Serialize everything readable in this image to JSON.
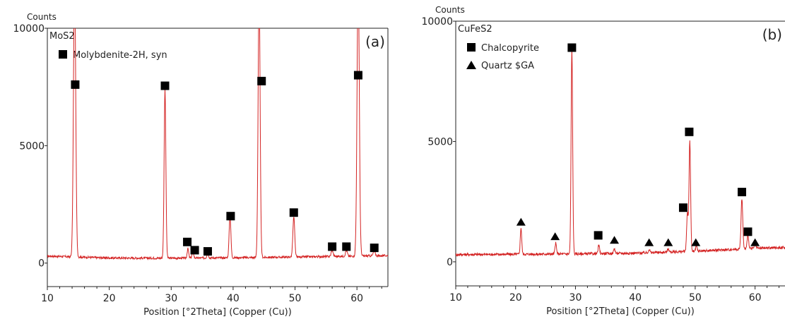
{
  "chart_data": [
    {
      "type": "line",
      "panel_label": "(a)",
      "title": "MoS2",
      "ylabel": "Counts",
      "xlabel": "Position [°2Theta] (Copper (Cu))",
      "xlim": [
        10,
        65
      ],
      "ylim": [
        -1000,
        10000
      ],
      "x_ticks": [
        10,
        20,
        30,
        40,
        50,
        60
      ],
      "y_ticks": [
        0,
        5000,
        10000
      ],
      "line_color": "#d42424",
      "legend": [
        {
          "marker": "square",
          "label": "Molybdenite-2H, syn"
        }
      ],
      "series": [
        {
          "baseline": [
            [
              10,
              300
            ],
            [
              20,
              220
            ],
            [
              30,
              210
            ],
            [
              40,
              230
            ],
            [
              50,
              260
            ],
            [
              60,
              300
            ],
            [
              65,
              320
            ]
          ],
          "noise": 45,
          "peaks": [
            [
              14.4,
              12000,
              0.18
            ],
            [
              29.0,
              7200,
              0.14
            ],
            [
              32.7,
              400,
              0.12
            ],
            [
              33.5,
              320,
              0.12
            ],
            [
              35.9,
              250,
              0.12
            ],
            [
              39.5,
              1800,
              0.14
            ],
            [
              44.2,
              11500,
              0.16
            ],
            [
              49.8,
              1700,
              0.15
            ],
            [
              56.0,
              280,
              0.15
            ],
            [
              58.3,
              250,
              0.15
            ],
            [
              60.2,
              12000,
              0.18
            ],
            [
              62.8,
              230,
              0.15
            ]
          ]
        }
      ],
      "markers": [
        {
          "shape": "square",
          "x": 14.5,
          "y": 7600
        },
        {
          "shape": "square",
          "x": 29.0,
          "y": 7550
        },
        {
          "shape": "square",
          "x": 32.6,
          "y": 900
        },
        {
          "shape": "square",
          "x": 33.8,
          "y": 550
        },
        {
          "shape": "square",
          "x": 35.9,
          "y": 500
        },
        {
          "shape": "square",
          "x": 39.6,
          "y": 2000
        },
        {
          "shape": "square",
          "x": 44.6,
          "y": 7750
        },
        {
          "shape": "square",
          "x": 49.8,
          "y": 2150
        },
        {
          "shape": "square",
          "x": 56.0,
          "y": 700
        },
        {
          "shape": "square",
          "x": 58.3,
          "y": 700
        },
        {
          "shape": "square",
          "x": 60.2,
          "y": 8000
        },
        {
          "shape": "square",
          "x": 62.8,
          "y": 650
        }
      ]
    },
    {
      "type": "line",
      "panel_label": "(b)",
      "title": "CuFeS2",
      "ylabel": "Counts",
      "xlabel": "Position [°2Theta] (Copper (Cu))",
      "xlim": [
        10,
        65
      ],
      "ylim": [
        -1000,
        10000
      ],
      "x_ticks": [
        10,
        20,
        30,
        40,
        50,
        60
      ],
      "y_ticks": [
        0,
        5000,
        10000
      ],
      "line_color": "#d42424",
      "legend": [
        {
          "marker": "square",
          "label": "Chalcopyrite"
        },
        {
          "marker": "triangle",
          "label": "Quartz $GA"
        }
      ],
      "series": [
        {
          "baseline": [
            [
              10,
              300
            ],
            [
              30,
              330
            ],
            [
              40,
              360
            ],
            [
              50,
              440
            ],
            [
              60,
              560
            ],
            [
              65,
              600
            ]
          ],
          "noise": 55,
          "peaks": [
            [
              20.9,
              1100,
              0.12
            ],
            [
              26.7,
              450,
              0.12
            ],
            [
              29.4,
              8500,
              0.13
            ],
            [
              33.9,
              350,
              0.12
            ],
            [
              36.5,
              200,
              0.12
            ],
            [
              42.3,
              150,
              0.12
            ],
            [
              45.5,
              150,
              0.12
            ],
            [
              48.7,
              1600,
              0.13
            ],
            [
              49.1,
              4600,
              0.13
            ],
            [
              50.2,
              200,
              0.12
            ],
            [
              57.8,
              2100,
              0.14
            ],
            [
              58.8,
              600,
              0.12
            ],
            [
              60.0,
              180,
              0.12
            ]
          ]
        }
      ],
      "markers": [
        {
          "shape": "triangle",
          "x": 20.9,
          "y": 1650
        },
        {
          "shape": "triangle",
          "x": 26.6,
          "y": 1050
        },
        {
          "shape": "square",
          "x": 29.4,
          "y": 8900
        },
        {
          "shape": "square",
          "x": 33.8,
          "y": 1100
        },
        {
          "shape": "triangle",
          "x": 36.5,
          "y": 900
        },
        {
          "shape": "triangle",
          "x": 42.3,
          "y": 800
        },
        {
          "shape": "triangle",
          "x": 45.5,
          "y": 800
        },
        {
          "shape": "square",
          "x": 48.0,
          "y": 2250
        },
        {
          "shape": "square",
          "x": 49.0,
          "y": 5400
        },
        {
          "shape": "triangle",
          "x": 50.1,
          "y": 800
        },
        {
          "shape": "square",
          "x": 57.8,
          "y": 2900
        },
        {
          "shape": "square",
          "x": 58.8,
          "y": 1250
        },
        {
          "shape": "triangle",
          "x": 60.0,
          "y": 800
        }
      ]
    }
  ]
}
